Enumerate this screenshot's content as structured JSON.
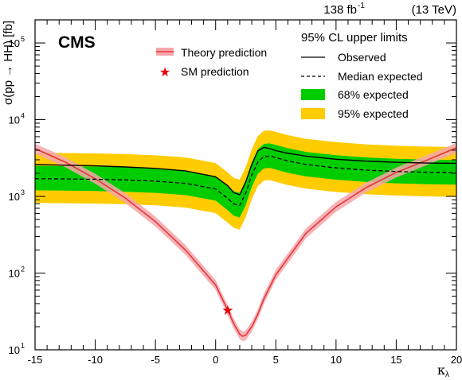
{
  "chart_data": {
    "type": "line",
    "header_lumi": "138 fb",
    "header_lumi_sup": "-1",
    "header_energy": "(13 TeV)",
    "experiment": "CMS",
    "xlabel": "κ",
    "xlabel_sub": "λ",
    "ylabel": "σ(pp → HH) [fb]",
    "xlim": [
      -15,
      20
    ],
    "ylim": [
      10,
      200000
    ],
    "yscale": "log",
    "x_ticks": [
      -15,
      -10,
      -5,
      0,
      5,
      10,
      15,
      20
    ],
    "x_tick_labels": [
      "-15",
      "-10",
      "-5",
      "0",
      "5",
      "10",
      "15",
      "20"
    ],
    "y_ticks": [
      10,
      100,
      1000,
      10000,
      100000
    ],
    "y_tick_base": "10",
    "y_tick_exps": [
      "1",
      "2",
      "3",
      "4",
      "5"
    ],
    "legend_left": {
      "theory_label": "Theory prediction",
      "sm_label": "SM prediction"
    },
    "legend_right": {
      "title": "95% CL upper limits",
      "observed_label": "Observed",
      "median_label": "Median expected",
      "band68_label": "68% expected",
      "band95_label": "95% expected"
    },
    "colors": {
      "theory": "#e8343a",
      "theory_band": "#f4a7aa",
      "band68": "#00cc00",
      "band95": "#ffcc00",
      "sm_star": "#e8000b"
    },
    "sm_point": {
      "x": 1,
      "y": 33
    },
    "x": [
      -15,
      -12.5,
      -10,
      -7.5,
      -5,
      -2.5,
      0,
      1,
      1.5,
      2,
      2.5,
      3,
      3.5,
      4,
      4.5,
      5,
      6,
      7.5,
      10,
      12.5,
      15,
      17.5,
      20
    ],
    "series": [
      {
        "name": "Observed",
        "values": [
          2600,
          2550,
          2500,
          2420,
          2320,
          2150,
          1800,
          1380,
          1120,
          1050,
          1550,
          2600,
          3900,
          4350,
          4200,
          3950,
          3650,
          3350,
          3050,
          2880,
          2780,
          2720,
          2700
        ]
      },
      {
        "name": "Median expected",
        "values": [
          1700,
          1690,
          1670,
          1640,
          1580,
          1480,
          1250,
          940,
          800,
          760,
          1100,
          1900,
          2800,
          3300,
          3350,
          3200,
          2900,
          2600,
          2350,
          2200,
          2110,
          2060,
          2030
        ]
      },
      {
        "name": "68% expected",
        "low": [
          1200,
          1190,
          1175,
          1150,
          1110,
          1040,
          880,
          660,
          560,
          530,
          770,
          1330,
          1960,
          2310,
          2350,
          2240,
          2030,
          1820,
          1650,
          1540,
          1480,
          1440,
          1420
        ],
        "high": [
          2500,
          2480,
          2450,
          2400,
          2310,
          2170,
          1830,
          1380,
          1170,
          1110,
          1610,
          2780,
          4100,
          4830,
          4900,
          4680,
          4240,
          3800,
          3440,
          3220,
          3090,
          3010,
          2970
        ]
      },
      {
        "name": "95% expected",
        "low": [
          820,
          815,
          805,
          790,
          765,
          715,
          605,
          455,
          390,
          370,
          535,
          920,
          1360,
          1600,
          1630,
          1550,
          1400,
          1260,
          1140,
          1070,
          1025,
          1000,
          985
        ],
        "high": [
          3700,
          3670,
          3630,
          3560,
          3430,
          3220,
          2720,
          2050,
          1740,
          1650,
          2390,
          4130,
          6100,
          7150,
          7250,
          6930,
          6280,
          5630,
          5100,
          4770,
          4580,
          4460,
          4400
        ]
      },
      {
        "name": "Theory prediction",
        "x": [
          -15,
          -12.5,
          -10,
          -7.5,
          -5,
          -2.5,
          0,
          1,
          1.5,
          2,
          2.25,
          2.5,
          3,
          3.5,
          4,
          5,
          7.5,
          10,
          12.5,
          15,
          17.5,
          20
        ],
        "values": [
          4200,
          2800,
          1700,
          950,
          470,
          200,
          70,
          33,
          22,
          16,
          15,
          15.5,
          20,
          29,
          46,
          95,
          330,
          730,
          1300,
          2050,
          2950,
          4300
        ]
      }
    ]
  }
}
